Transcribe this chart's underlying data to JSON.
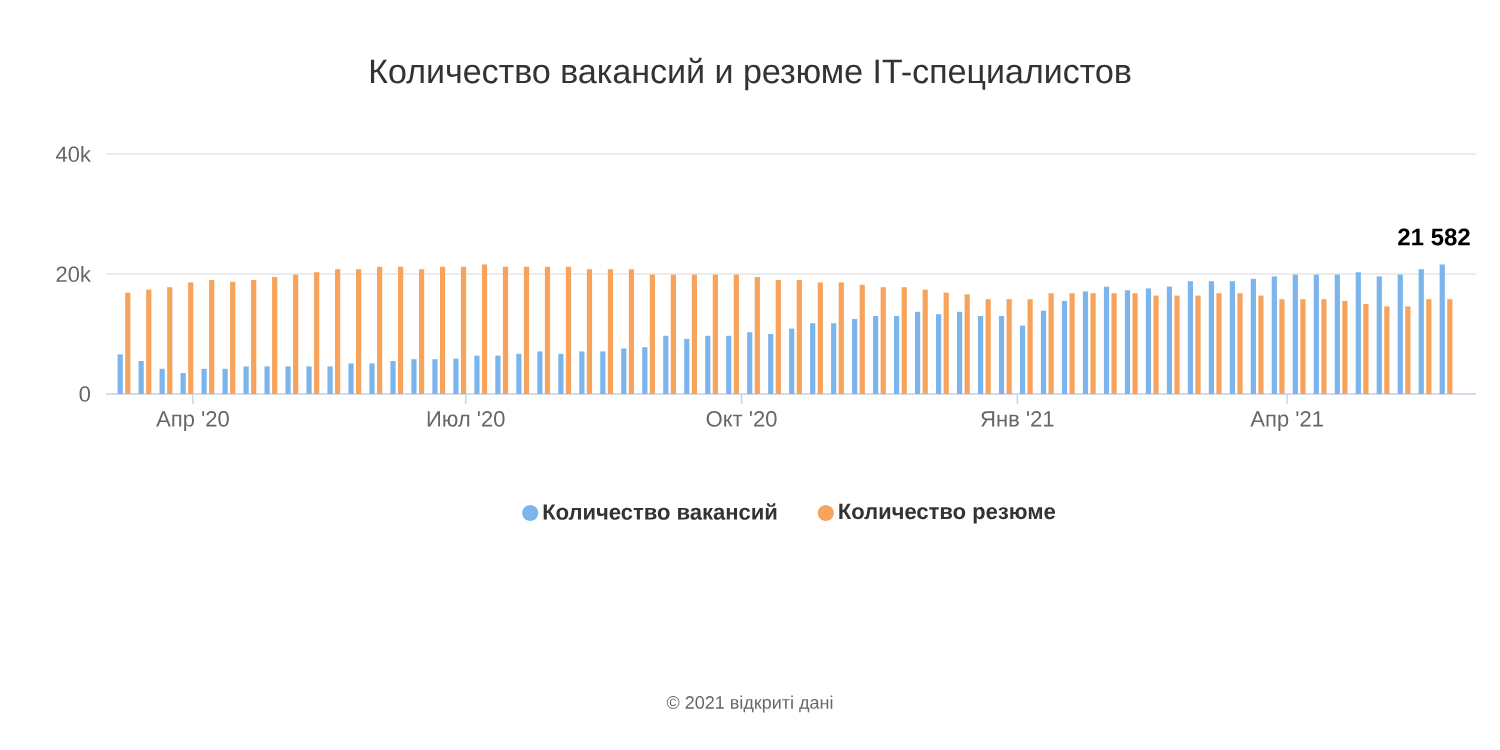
{
  "chart_data": {
    "type": "bar",
    "title": "Количество вакансий и резюме IT-специалистов",
    "x": [
      "2020-03-09",
      "2020-03-16",
      "2020-03-23",
      "2020-03-30",
      "2020-04-06",
      "2020-04-13",
      "2020-04-20",
      "2020-04-27",
      "2020-05-04",
      "2020-05-11",
      "2020-05-18",
      "2020-05-25",
      "2020-06-01",
      "2020-06-08",
      "2020-06-15",
      "2020-06-22",
      "2020-06-29",
      "2020-07-06",
      "2020-07-13",
      "2020-07-20",
      "2020-07-27",
      "2020-08-03",
      "2020-08-10",
      "2020-08-17",
      "2020-08-24",
      "2020-08-31",
      "2020-09-07",
      "2020-09-14",
      "2020-09-21",
      "2020-09-28",
      "2020-10-05",
      "2020-10-12",
      "2020-10-19",
      "2020-10-26",
      "2020-11-02",
      "2020-11-09",
      "2020-11-16",
      "2020-11-23",
      "2020-11-30",
      "2020-12-07",
      "2020-12-14",
      "2020-12-21",
      "2020-12-28",
      "2021-01-04",
      "2021-01-11",
      "2021-01-18",
      "2021-01-25",
      "2021-02-01",
      "2021-02-08",
      "2021-02-15",
      "2021-02-22",
      "2021-03-01",
      "2021-03-08",
      "2021-03-15",
      "2021-03-22",
      "2021-03-29",
      "2021-04-05",
      "2021-04-12",
      "2021-04-19",
      "2021-04-26",
      "2021-05-03",
      "2021-05-10",
      "2021-05-17",
      "2021-05-24"
    ],
    "series": [
      {
        "name": "Количество вакансий",
        "color": "#7cb5ec",
        "values": [
          6600,
          5500,
          4200,
          3500,
          4200,
          4200,
          4600,
          4600,
          4600,
          4600,
          4600,
          5100,
          5100,
          5500,
          5800,
          5800,
          5900,
          6400,
          6400,
          6700,
          7100,
          6700,
          7100,
          7100,
          7600,
          7800,
          9700,
          9200,
          9700,
          9700,
          10300,
          10000,
          10900,
          11800,
          11800,
          12500,
          13000,
          13000,
          13700,
          13300,
          13700,
          13000,
          13000,
          11400,
          13900,
          15500,
          17100,
          17900,
          17300,
          17600,
          17900,
          18800,
          18800,
          18800,
          19200,
          19600,
          19900,
          19900,
          19900,
          20300,
          19600,
          19900,
          20800,
          21582
        ]
      },
      {
        "name": "Количество резюме",
        "color": "#f7a35c",
        "values": [
          16900,
          17400,
          17800,
          18600,
          19000,
          18700,
          19000,
          19500,
          19900,
          20300,
          20800,
          20800,
          21200,
          21200,
          20800,
          21200,
          21200,
          21600,
          21200,
          21200,
          21200,
          21200,
          20800,
          20800,
          20800,
          19900,
          19900,
          19900,
          19900,
          19900,
          19500,
          19000,
          19000,
          18600,
          18600,
          18200,
          17800,
          17800,
          17400,
          16900,
          16600,
          15800,
          15800,
          15800,
          16800,
          16800,
          16800,
          16800,
          16800,
          16400,
          16400,
          16400,
          16800,
          16800,
          16400,
          15800,
          15800,
          15800,
          15500,
          15000,
          14600,
          14600,
          15800,
          15800
        ]
      }
    ],
    "xlim": [
      "2020-03-03",
      "2021-06-03"
    ],
    "xticks": [
      {
        "value": "2020-04-01",
        "label": "Апр '20"
      },
      {
        "value": "2020-07-01",
        "label": "Июл '20"
      },
      {
        "value": "2020-10-01",
        "label": "Окт '20"
      },
      {
        "value": "2021-01-01",
        "label": "Янв '21"
      },
      {
        "value": "2021-04-01",
        "label": "Апр '21"
      }
    ],
    "ylim": [
      0,
      40000
    ],
    "yticks": [
      0,
      {
        "value": 20000,
        "label": "20k"
      },
      {
        "value": 40000,
        "label": "40k"
      }
    ],
    "grid": "y",
    "legend": "bottom",
    "annotations": [
      {
        "text": "21 582",
        "x": "2021-05-24",
        "y": 21582
      },
      "© 2021 відкриті дані"
    ]
  }
}
